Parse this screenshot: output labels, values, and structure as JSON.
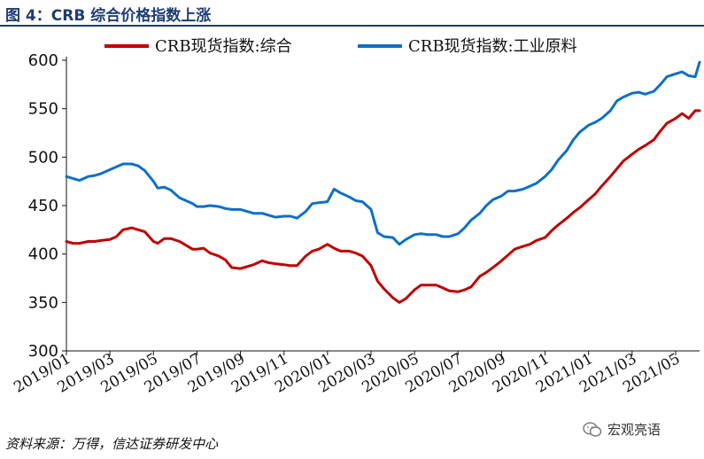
{
  "figure": {
    "title": "图 4：CRB 综合价格指数上涨",
    "source": "资料来源：万得，信达证券研发中心",
    "watermark": "宏观亮语",
    "watermark_icon": "wechat-icon"
  },
  "chart_data": {
    "type": "line",
    "xlabel": "",
    "ylabel": "",
    "ylim": [
      300,
      600
    ],
    "yticks": [
      300,
      350,
      400,
      450,
      500,
      550,
      600
    ],
    "xlim": [
      0,
      29.1
    ],
    "xticks": [
      {
        "pos": 0,
        "label": "2019/01"
      },
      {
        "pos": 2,
        "label": "2019/03"
      },
      {
        "pos": 4,
        "label": "2019/05"
      },
      {
        "pos": 6,
        "label": "2019/07"
      },
      {
        "pos": 8,
        "label": "2019/09"
      },
      {
        "pos": 10,
        "label": "2019/11"
      },
      {
        "pos": 12,
        "label": "2020/01"
      },
      {
        "pos": 14,
        "label": "2020/03"
      },
      {
        "pos": 16,
        "label": "2020/05"
      },
      {
        "pos": 18,
        "label": "2020/07"
      },
      {
        "pos": 20,
        "label": "2020/09"
      },
      {
        "pos": 22,
        "label": "2020/11"
      },
      {
        "pos": 24,
        "label": "2021/01"
      },
      {
        "pos": 26,
        "label": "2021/03"
      },
      {
        "pos": 28,
        "label": "2021/05"
      }
    ],
    "grid": false,
    "legend": "top",
    "series": [
      {
        "name": "CRB现货指数:综合",
        "color": "#c00000",
        "x": [
          0,
          0.3,
          0.6,
          1,
          1.3,
          1.6,
          2,
          2.3,
          2.6,
          3,
          3.3,
          3.6,
          4,
          4.2,
          4.5,
          4.8,
          5.2,
          5.5,
          5.8,
          6,
          6.3,
          6.6,
          7,
          7.3,
          7.6,
          8,
          8.3,
          8.6,
          9,
          9.3,
          9.6,
          10,
          10.3,
          10.6,
          11,
          11.3,
          11.6,
          12,
          12.3,
          12.6,
          13,
          13.3,
          13.6,
          14,
          14.3,
          14.6,
          15,
          15.3,
          15.6,
          16,
          16.3,
          16.6,
          17,
          17.3,
          17.6,
          18,
          18.3,
          18.6,
          19,
          19.3,
          19.6,
          20,
          20.3,
          20.6,
          21,
          21.3,
          21.6,
          22,
          22.3,
          22.6,
          23,
          23.3,
          23.6,
          24,
          24.3,
          24.6,
          25,
          25.3,
          25.6,
          26,
          26.3,
          26.6,
          27,
          27.3,
          27.6,
          28,
          28.3,
          28.6,
          28.9,
          29.1
        ],
        "values": [
          413,
          411,
          411,
          413,
          413,
          414,
          415,
          418,
          425,
          427,
          425,
          423,
          413,
          411,
          416,
          416,
          413,
          409,
          405,
          405,
          406,
          401,
          398,
          394,
          386,
          385,
          387,
          389,
          393,
          391,
          390,
          389,
          388,
          388,
          398,
          403,
          405,
          410,
          406,
          403,
          403,
          401,
          398,
          388,
          372,
          364,
          355,
          350,
          354,
          363,
          368,
          368,
          368,
          365,
          362,
          361,
          363,
          366,
          377,
          381,
          386,
          393,
          399,
          405,
          408,
          410,
          414,
          417,
          424,
          430,
          437,
          443,
          448,
          456,
          462,
          470,
          480,
          488,
          496,
          503,
          508,
          512,
          518,
          527,
          535,
          540,
          545,
          540,
          548,
          548
        ]
      },
      {
        "name": "CRB现货指数:工业原料",
        "color": "#0f6fc6",
        "x": [
          0,
          0.3,
          0.6,
          1,
          1.3,
          1.6,
          2,
          2.3,
          2.6,
          3,
          3.3,
          3.6,
          4,
          4.2,
          4.5,
          4.8,
          5.2,
          5.5,
          5.8,
          6,
          6.3,
          6.6,
          7,
          7.3,
          7.6,
          8,
          8.3,
          8.6,
          9,
          9.3,
          9.6,
          10,
          10.3,
          10.6,
          11,
          11.3,
          11.6,
          12,
          12.3,
          12.6,
          13,
          13.3,
          13.6,
          14,
          14.3,
          14.6,
          15,
          15.3,
          15.6,
          16,
          16.3,
          16.6,
          17,
          17.3,
          17.6,
          18,
          18.3,
          18.6,
          19,
          19.3,
          19.6,
          20,
          20.3,
          20.6,
          21,
          21.3,
          21.6,
          22,
          22.3,
          22.6,
          23,
          23.3,
          23.6,
          24,
          24.3,
          24.6,
          25,
          25.3,
          25.6,
          26,
          26.3,
          26.6,
          27,
          27.3,
          27.6,
          28,
          28.3,
          28.6,
          28.9,
          29.1
        ],
        "values": [
          480,
          478,
          476,
          480,
          481,
          483,
          487,
          490,
          493,
          493,
          491,
          486,
          475,
          468,
          469,
          466,
          458,
          455,
          452,
          449,
          449,
          450,
          449,
          447,
          446,
          446,
          444,
          442,
          442,
          440,
          438,
          439,
          439,
          437,
          444,
          452,
          453,
          454,
          467,
          463,
          459,
          455,
          454,
          446,
          422,
          418,
          417,
          410,
          415,
          420,
          421,
          420,
          420,
          418,
          418,
          421,
          427,
          435,
          442,
          450,
          456,
          460,
          465,
          465,
          467,
          470,
          473,
          480,
          487,
          497,
          507,
          518,
          526,
          533,
          536,
          540,
          548,
          558,
          562,
          566,
          567,
          565,
          568,
          575,
          583,
          586,
          588,
          584,
          583,
          598
        ]
      }
    ]
  }
}
